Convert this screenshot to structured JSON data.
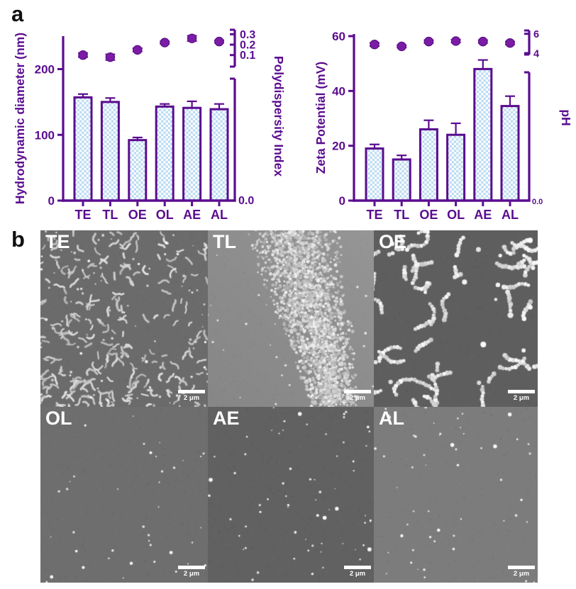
{
  "panels": {
    "a_label": "a",
    "b_label": "b"
  },
  "colors": {
    "axis_purple": "#5a0c8f",
    "dot_purple": "#7b1ca6",
    "bar_check_blue": "#b9daf2",
    "bar_check_white": "#ffffff",
    "sem_label_color": "#ffffff"
  },
  "chart_data": [
    {
      "type": "bar",
      "categories": [
        "TE",
        "TL",
        "OE",
        "OL",
        "AE",
        "AL"
      ],
      "bar_series": {
        "name": "Hydrodynamic diameter (nm)",
        "values": [
          157,
          150,
          92,
          143,
          141,
          139
        ],
        "errors": [
          5,
          6,
          4,
          4,
          10,
          8
        ]
      },
      "dot_series": {
        "name": "Polydispersity Index",
        "values": [
          0.1,
          0.08,
          0.15,
          0.22,
          0.26,
          0.23
        ],
        "errors": [
          0.02,
          0.028,
          0.016,
          0.012,
          0.026,
          0.012
        ]
      },
      "left_axis": {
        "label": "Hydrodynamic diameter (nm)",
        "tick_labels": [
          "0",
          "100",
          "200"
        ],
        "tick_values": [
          0,
          100,
          200
        ],
        "range": [
          0,
          250
        ]
      },
      "right_axis": {
        "label": "Polydispersity Index",
        "tick_labels": [
          "0.1",
          "0.2",
          "0.3"
        ],
        "tick_values": [
          0.1,
          0.2,
          0.3
        ],
        "bottom_label": "0.0",
        "broken": true,
        "range": [
          0.0,
          0.32
        ]
      },
      "grid": false,
      "legend": "none"
    },
    {
      "type": "bar",
      "categories": [
        "TE",
        "TL",
        "OE",
        "OL",
        "AE",
        "AL"
      ],
      "bar_series": {
        "name": "Zeta Potential (mV)",
        "values": [
          19,
          15,
          26,
          24,
          48,
          34.5
        ],
        "errors": [
          1.5,
          1.5,
          3.3,
          4.2,
          3.3,
          3.6
        ]
      },
      "dot_series": {
        "name": "pH",
        "values": [
          4.9,
          4.7,
          5.2,
          5.25,
          5.2,
          5.05
        ],
        "errors": [
          0.18,
          0.12,
          0.15,
          0.15,
          0.15,
          0.15
        ]
      },
      "left_axis": {
        "label": "Zeta Potential (mV)",
        "tick_labels": [
          "0",
          "20",
          "40",
          "60"
        ],
        "tick_values": [
          0,
          20,
          40,
          60
        ],
        "range": [
          0,
          61
        ]
      },
      "right_axis": {
        "label": "pH",
        "tick_labels": [
          "6",
          "4"
        ],
        "tick_values": [
          6,
          4
        ],
        "bottom_label": "0.0",
        "broken": true,
        "range": [
          0,
          6.3
        ]
      },
      "grid": false,
      "legend": "none"
    }
  ],
  "sem_panel": {
    "tiles": [
      {
        "label": "TE",
        "scalebar": "2 μm",
        "bg": "#6b6b6b",
        "style": "worms",
        "density": 240
      },
      {
        "label": "TL",
        "scalebar": "2 μm",
        "bg": "#8e8e8e",
        "style": "band",
        "density": 2400
      },
      {
        "label": "OE",
        "scalebar": "2 μm",
        "bg": "#5e5e5e",
        "style": "chains",
        "density": 44
      },
      {
        "label": "OL",
        "scalebar": "2 μm",
        "bg": "#6e6e6e",
        "style": "sparse",
        "density": 34
      },
      {
        "label": "AE",
        "scalebar": "2 μm",
        "bg": "#616161",
        "style": "sparse",
        "density": 60
      },
      {
        "label": "AL",
        "scalebar": "2 μm",
        "bg": "#7c7c7c",
        "style": "sparse",
        "density": 46
      }
    ]
  }
}
